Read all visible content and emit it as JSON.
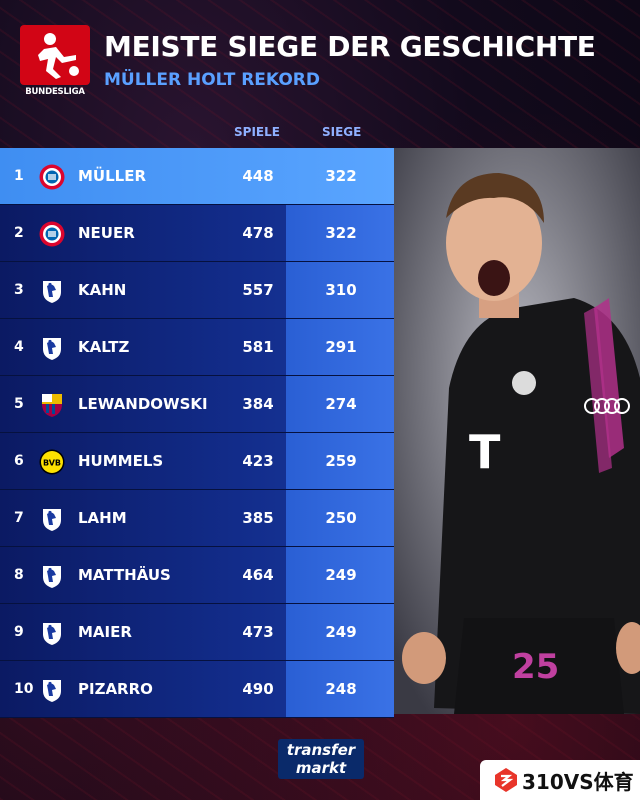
{
  "header": {
    "logo_text": "BUNDESLIGA",
    "title": "MEISTE SIEGE DER GESCHICHTE",
    "subtitle": "MÜLLER HOLT REKORD"
  },
  "columns": {
    "spiele": "SPIELE",
    "siege": "SIEGE"
  },
  "table": [
    {
      "rank": "1",
      "crest": "bayern-crest-icon",
      "name": "MÜLLER",
      "spiele": "448",
      "siege": "322"
    },
    {
      "rank": "2",
      "crest": "bayern-crest-icon",
      "name": "NEUER",
      "spiele": "478",
      "siege": "322"
    },
    {
      "rank": "3",
      "crest": "bundesliga-crest-icon",
      "name": "KAHN",
      "spiele": "557",
      "siege": "310"
    },
    {
      "rank": "4",
      "crest": "bundesliga-crest-icon",
      "name": "KALTZ",
      "spiele": "581",
      "siege": "291"
    },
    {
      "rank": "5",
      "crest": "barcelona-crest-icon",
      "name": "LEWANDOWSKI",
      "spiele": "384",
      "siege": "274"
    },
    {
      "rank": "6",
      "crest": "dortmund-crest-icon",
      "name": "HUMMELS",
      "spiele": "423",
      "siege": "259"
    },
    {
      "rank": "7",
      "crest": "bundesliga-crest-icon",
      "name": "LAHM",
      "spiele": "385",
      "siege": "250"
    },
    {
      "rank": "8",
      "crest": "bundesliga-crest-icon",
      "name": "MATTHÄUS",
      "spiele": "464",
      "siege": "249"
    },
    {
      "rank": "9",
      "crest": "bundesliga-crest-icon",
      "name": "MAIER",
      "spiele": "473",
      "siege": "249"
    },
    {
      "rank": "10",
      "crest": "bundesliga-crest-icon",
      "name": "PIZARRO",
      "spiele": "490",
      "siege": "248"
    }
  ],
  "footer": {
    "brand_line1": "transfer",
    "brand_line2": "markt",
    "watermark": "310VS体育"
  },
  "colors": {
    "accent": "#5aa0ff",
    "row_dark": "#0b1a63",
    "highlight": "#4a9af8",
    "bundesliga_red": "#d20515"
  }
}
